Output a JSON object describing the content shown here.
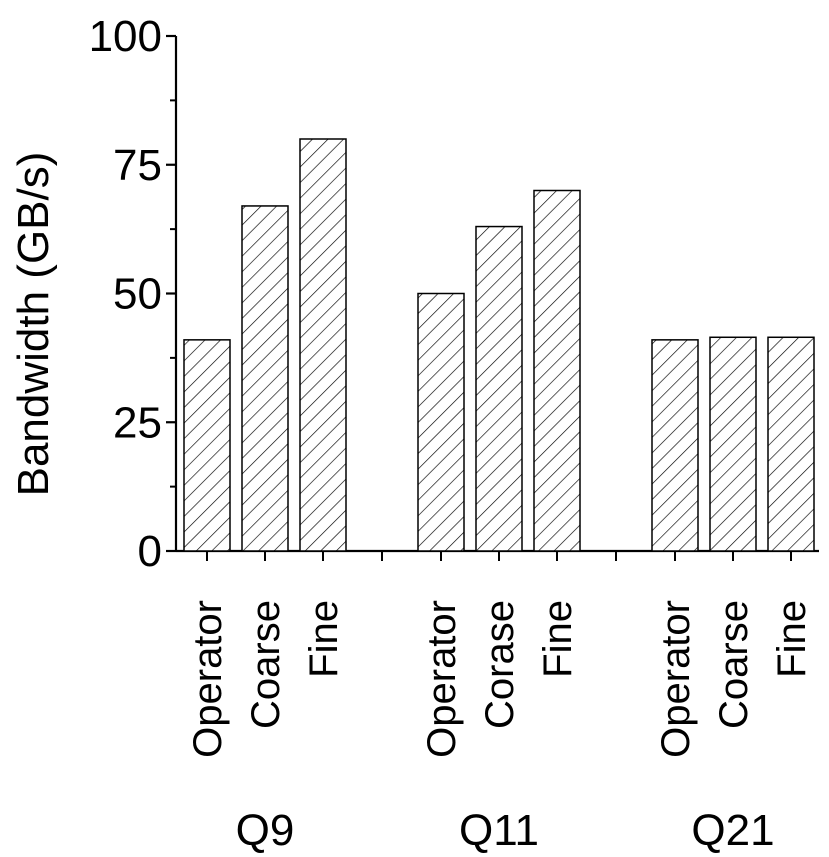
{
  "chart_data": {
    "type": "bar",
    "title": "",
    "xlabel": "",
    "ylabel": "Bandwidth (GB/s)",
    "ylim": [
      0,
      100
    ],
    "yticks": [
      "0",
      "25",
      "50",
      "75",
      "100"
    ],
    "grid": false,
    "legend": "none",
    "bar_fill": "diagonal-hatch",
    "colors": {
      "bar_stroke": "#000000",
      "hatch": "#000000",
      "background": "#ffffff"
    },
    "groups": [
      {
        "name": "Q9",
        "bars": [
          {
            "label": "Operator",
            "value": 41
          },
          {
            "label": "Coarse",
            "value": 67
          },
          {
            "label": "Fine",
            "value": 80
          }
        ]
      },
      {
        "name": "Q11",
        "bars": [
          {
            "label": "Operator",
            "value": 50
          },
          {
            "label": "Corase",
            "value": 63
          },
          {
            "label": "Fine",
            "value": 70
          }
        ]
      },
      {
        "name": "Q21",
        "bars": [
          {
            "label": "Operator",
            "value": 41
          },
          {
            "label": "Coarse",
            "value": 41.5
          },
          {
            "label": "Fine",
            "value": 41.5
          }
        ]
      }
    ]
  }
}
